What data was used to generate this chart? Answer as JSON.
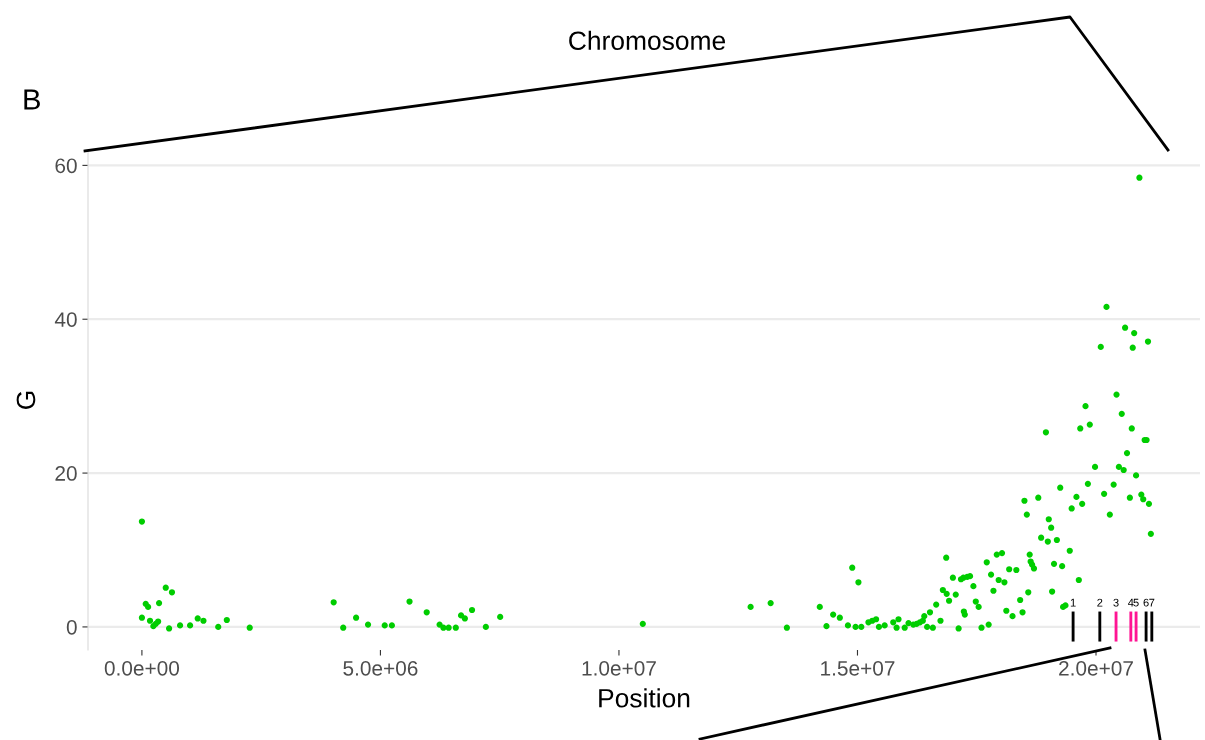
{
  "chart_data": {
    "type": "scatter",
    "xlabel": "Position",
    "ylabel": "G",
    "annotations": [
      "B",
      "Chromosome",
      "1",
      "2",
      "3",
      "4",
      "5",
      "6",
      "7"
    ],
    "series": [
      {
        "color": "#00cd00",
        "x": [
          0.0,
          0.0,
          80000.0,
          130000.0,
          170000.0,
          240000.0,
          290000.0,
          340000.0,
          360000.0,
          500000.0,
          570000.0,
          630000.0,
          800000.0,
          1010000.0,
          1170000.0,
          1290000.0,
          1600000.0,
          1780000.0,
          2260000.0,
          4020000.0,
          4220000.0,
          4490000.0,
          4740000.0,
          5090000.0,
          5240000.0,
          5610000.0,
          5970000.0,
          6240000.0,
          6320000.0,
          6430000.0,
          6580000.0,
          6690000.0,
          6770000.0,
          6920000.0,
          7210000.0,
          7510000.0,
          10500000.0,
          12760000.0,
          13180000.0,
          13520000.0,
          14210000.0,
          14350000.0,
          14490000.0,
          14630000.0,
          14800000.0,
          14890000.0,
          14960000.0,
          15020000.0,
          15080000.0,
          15230000.0,
          15310000.0,
          15390000.0,
          15450000.0,
          15570000.0,
          15750000.0,
          15820000.0,
          15860000.0,
          15990000.0,
          16070000.0,
          16170000.0,
          16240000.0,
          16310000.0,
          16370000.0,
          16400000.0,
          16460000.0,
          16520000.0,
          16580000.0,
          16650000.0,
          16740000.0,
          16790000.0,
          16860000.0,
          16870000.0,
          16920000.0,
          17000000.0,
          17060000.0,
          17120000.0,
          17170000.0,
          17220000.0,
          17230000.0,
          17250000.0,
          17300000.0,
          17360000.0,
          17430000.0,
          17480000.0,
          17540000.0,
          17600000.0,
          17710000.0,
          17750000.0,
          17800000.0,
          17850000.0,
          17920000.0,
          17960000.0,
          18030000.0,
          18080000.0,
          18120000.0,
          18180000.0,
          18250000.0,
          18330000.0,
          18410000.0,
          18460000.0,
          18500000.0,
          18550000.0,
          18580000.0,
          18610000.0,
          18630000.0,
          18660000.0,
          18700000.0,
          18790000.0,
          18850000.0,
          18950000.0,
          18990000.0,
          19010000.0,
          19060000.0,
          19080000.0,
          19120000.0,
          19180000.0,
          19250000.0,
          19290000.0,
          19310000.0,
          19360000.0,
          19450000.0,
          19490000.0,
          19590000.0,
          19640000.0,
          19670000.0,
          19710000.0,
          19780000.0,
          19830000.0,
          19870000.0,
          19980000.0,
          20100000.0,
          20170000.0,
          20220000.0,
          20290000.0,
          20370000.0,
          20430000.0,
          20480000.0,
          20540000.0,
          20580000.0,
          20610000.0,
          20650000.0,
          20710000.0,
          20750000.0,
          20770000.0,
          20800000.0,
          20840000.0,
          20910000.0,
          20950000.0,
          20990000.0,
          21020000.0,
          21060000.0,
          21090000.0,
          21110000.0,
          21150000.0
        ],
        "values": [
          13.7,
          1.2,
          3.0,
          2.6,
          0.8,
          0.1,
          0.4,
          0.7,
          3.1,
          5.1,
          -0.2,
          4.5,
          0.2,
          0.2,
          1.1,
          0.8,
          0.0,
          0.9,
          -0.1,
          3.2,
          -0.1,
          1.2,
          0.3,
          0.2,
          0.2,
          3.3,
          1.9,
          0.3,
          -0.1,
          -0.1,
          -0.1,
          1.5,
          1.1,
          2.2,
          0.0,
          1.3,
          0.4,
          2.6,
          3.1,
          -0.1,
          2.6,
          0.1,
          1.6,
          1.2,
          0.2,
          7.7,
          0.0,
          5.8,
          0.0,
          0.6,
          0.8,
          1.0,
          0.0,
          0.2,
          0.6,
          -0.1,
          1.0,
          -0.1,
          0.5,
          0.3,
          0.4,
          0.6,
          0.8,
          1.4,
          0.0,
          1.9,
          -0.1,
          2.9,
          0.8,
          4.8,
          9.0,
          4.3,
          3.4,
          6.4,
          4.2,
          -0.2,
          6.2,
          6.4,
          2.0,
          1.6,
          6.5,
          6.6,
          5.3,
          3.3,
          2.6,
          -0.1,
          8.4,
          0.3,
          6.8,
          4.7,
          9.4,
          6.1,
          9.6,
          5.8,
          2.1,
          7.5,
          1.4,
          7.4,
          3.5,
          1.9,
          16.4,
          14.6,
          4.5,
          9.4,
          8.5,
          8.1,
          7.6,
          16.8,
          11.6,
          25.3,
          11.1,
          14.0,
          12.9,
          4.6,
          8.2,
          11.3,
          18.1,
          7.9,
          2.6,
          2.8,
          9.9,
          15.4,
          16.9,
          6.1,
          25.8,
          16.0,
          28.7,
          18.6,
          26.3,
          20.8,
          36.4,
          17.3,
          41.6,
          14.6,
          18.5,
          30.2,
          20.8,
          27.7,
          20.4,
          38.9,
          22.6,
          16.8,
          25.8,
          36.3,
          38.2,
          19.7,
          58.4,
          17.2,
          16.6,
          24.3,
          24.3,
          37.1,
          16.0,
          12.1
        ]
      },
      {
        "type": "bar",
        "x": [
          19520000.0,
          20080000.0,
          20420000.0,
          20730000.0,
          20840000.0,
          21050000.0,
          21170000.0
        ],
        "base": [
          -1.9,
          -1.9,
          -1.9,
          -1.9,
          -1.9,
          -1.9,
          -1.9
        ],
        "values": [
          3.9,
          3.9,
          3.9,
          3.9,
          3.9,
          3.9,
          3.9
        ],
        "colors": [
          "#000000",
          "#000000",
          "#ff1493",
          "#ff1493",
          "#ff1493",
          "#000000",
          "#000000"
        ]
      }
    ],
    "marker": "circle",
    "xlim": [
      -1130000.0,
      22180000.0
    ],
    "xticks": [
      {
        "value": 0,
        "label": "0.0e+00"
      },
      {
        "value": 5000000,
        "label": "5.0e+06"
      },
      {
        "value": 10000000,
        "label": "1.0e+07"
      },
      {
        "value": 15000000,
        "label": "1.5e+07"
      },
      {
        "value": 20000000,
        "label": "2.0e+07"
      }
    ],
    "ylim": [
      -3,
      62
    ],
    "yticks": [
      0,
      20,
      40,
      60
    ],
    "grid": "y"
  }
}
